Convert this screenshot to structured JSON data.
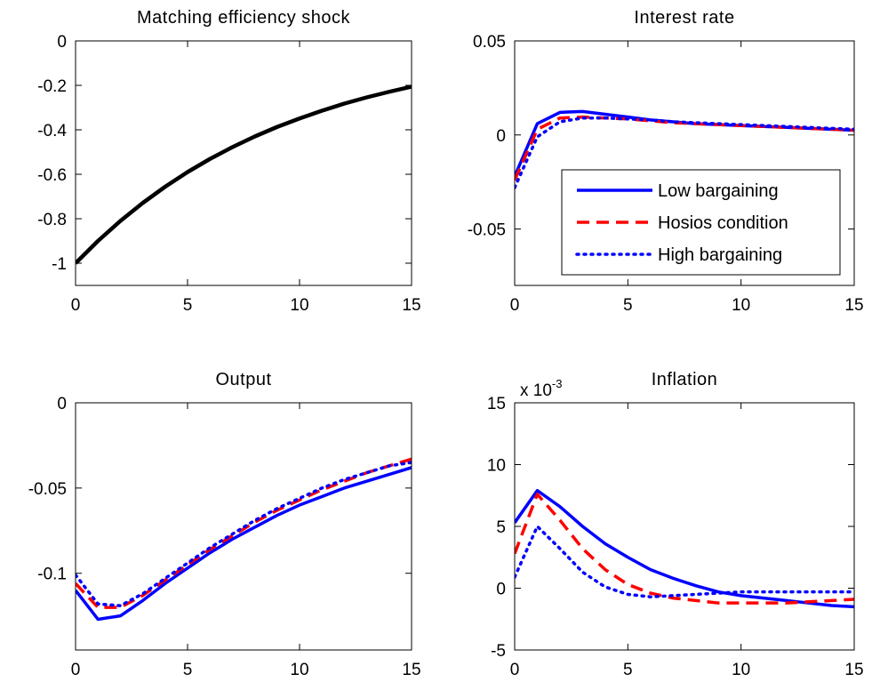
{
  "colors": {
    "black_line": "#000000",
    "low_bargaining": "#0000ff",
    "hosios": "#ff0000",
    "high_bargaining": "#0000ff"
  },
  "chart_data": [
    {
      "type": "line",
      "title": "Matching efficiency shock",
      "xlabel": "",
      "ylabel": "",
      "xlim": [
        0,
        15
      ],
      "ylim": [
        -1.1,
        0
      ],
      "xticks": [
        0,
        5,
        10,
        15
      ],
      "xtick_labels": [
        "0",
        "5",
        "10",
        "15"
      ],
      "yticks": [
        0,
        -0.2,
        -0.4,
        -0.6,
        -0.8,
        -1
      ],
      "ytick_labels": [
        "0",
        "-0.2",
        "-0.4",
        "-0.6",
        "-0.8",
        "-1"
      ],
      "grid": false,
      "x": [
        0,
        1,
        2,
        3,
        4,
        5,
        6,
        7,
        8,
        9,
        10,
        11,
        12,
        13,
        14,
        15
      ],
      "series": [
        {
          "style": "solid-black",
          "values": [
            -1.0,
            -0.9,
            -0.81,
            -0.729,
            -0.656,
            -0.59,
            -0.531,
            -0.478,
            -0.43,
            -0.387,
            -0.349,
            -0.314,
            -0.282,
            -0.254,
            -0.229,
            -0.206
          ]
        }
      ]
    },
    {
      "type": "line",
      "title": "Interest rate",
      "xlabel": "",
      "ylabel": "",
      "xlim": [
        0,
        15
      ],
      "ylim": [
        -0.08,
        0.05
      ],
      "xticks": [
        0,
        5,
        10,
        15
      ],
      "xtick_labels": [
        "0",
        "5",
        "10",
        "15"
      ],
      "yticks": [
        0.05,
        0,
        -0.05
      ],
      "ytick_labels": [
        "0.05",
        "0",
        "-0.05"
      ],
      "grid": false,
      "legend": {
        "placement": "right-middle",
        "entries": [
          "Low bargaining",
          "Hosios condition",
          "High bargaining"
        ]
      },
      "x": [
        0,
        1,
        2,
        3,
        4,
        5,
        6,
        7,
        8,
        9,
        10,
        11,
        12,
        13,
        14,
        15
      ],
      "series": [
        {
          "name": "Low bargaining",
          "style": "solid-blue",
          "values": [
            -0.022,
            0.006,
            0.012,
            0.0125,
            0.011,
            0.0095,
            0.008,
            0.007,
            0.006,
            0.0055,
            0.005,
            0.0045,
            0.004,
            0.0035,
            0.003,
            0.0025
          ]
        },
        {
          "name": "Hosios condition",
          "style": "dashed-red",
          "values": [
            -0.024,
            0.003,
            0.009,
            0.0095,
            0.009,
            0.0085,
            0.0075,
            0.0065,
            0.006,
            0.0055,
            0.005,
            0.0045,
            0.004,
            0.0035,
            0.003,
            0.0025
          ]
        },
        {
          "name": "High bargaining",
          "style": "dotted-blue",
          "values": [
            -0.028,
            -0.001,
            0.007,
            0.009,
            0.009,
            0.0085,
            0.008,
            0.007,
            0.0065,
            0.006,
            0.0055,
            0.005,
            0.0045,
            0.004,
            0.0035,
            0.003
          ]
        }
      ]
    },
    {
      "type": "line",
      "title": "Output",
      "xlabel": "",
      "ylabel": "",
      "xlim": [
        0,
        15
      ],
      "ylim": [
        -0.145,
        0
      ],
      "xticks": [
        0,
        5,
        10,
        15
      ],
      "xtick_labels": [
        "0",
        "5",
        "10",
        "15"
      ],
      "yticks": [
        0,
        -0.05,
        -0.1
      ],
      "ytick_labels": [
        "0",
        "-0.05",
        "-0.1"
      ],
      "grid": false,
      "x": [
        0,
        1,
        2,
        3,
        4,
        5,
        6,
        7,
        8,
        9,
        10,
        11,
        12,
        13,
        14,
        15
      ],
      "series": [
        {
          "name": "Low bargaining",
          "style": "solid-blue",
          "values": [
            -0.11,
            -0.127,
            -0.125,
            -0.116,
            -0.106,
            -0.097,
            -0.088,
            -0.08,
            -0.073,
            -0.066,
            -0.06,
            -0.055,
            -0.05,
            -0.046,
            -0.042,
            -0.038
          ]
        },
        {
          "name": "Hosios condition",
          "style": "dashed-red",
          "values": [
            -0.106,
            -0.12,
            -0.12,
            -0.113,
            -0.104,
            -0.095,
            -0.086,
            -0.078,
            -0.07,
            -0.063,
            -0.057,
            -0.051,
            -0.046,
            -0.041,
            -0.037,
            -0.033
          ]
        },
        {
          "name": "High bargaining",
          "style": "dotted-blue",
          "values": [
            -0.101,
            -0.118,
            -0.119,
            -0.112,
            -0.103,
            -0.094,
            -0.085,
            -0.077,
            -0.069,
            -0.062,
            -0.056,
            -0.05,
            -0.045,
            -0.041,
            -0.037,
            -0.035
          ]
        }
      ]
    },
    {
      "type": "line",
      "title": "Inflation",
      "exponent_base": "x 10",
      "exponent_power": "-3",
      "xlabel": "",
      "ylabel": "",
      "xlim": [
        0,
        15
      ],
      "ylim": [
        -5,
        15
      ],
      "xticks": [
        0,
        5,
        10,
        15
      ],
      "xtick_labels": [
        "0",
        "5",
        "10",
        "15"
      ],
      "yticks": [
        15,
        10,
        5,
        0,
        -5
      ],
      "ytick_labels": [
        "15",
        "10",
        "5",
        "0",
        "-5"
      ],
      "grid": false,
      "x": [
        0,
        1,
        2,
        3,
        4,
        5,
        6,
        7,
        8,
        9,
        10,
        11,
        12,
        13,
        14,
        15
      ],
      "series": [
        {
          "name": "Low bargaining",
          "style": "solid-blue",
          "values": [
            5.3,
            7.9,
            6.6,
            5.0,
            3.6,
            2.5,
            1.5,
            0.8,
            0.2,
            -0.3,
            -0.6,
            -0.8,
            -1.0,
            -1.2,
            -1.4,
            -1.5
          ]
        },
        {
          "name": "Hosios condition",
          "style": "dashed-red",
          "values": [
            2.8,
            7.6,
            5.5,
            3.2,
            1.5,
            0.3,
            -0.4,
            -0.8,
            -1.0,
            -1.2,
            -1.2,
            -1.2,
            -1.2,
            -1.1,
            -1.0,
            -0.9
          ]
        },
        {
          "name": "High bargaining",
          "style": "dotted-blue",
          "values": [
            0.9,
            5.0,
            3.2,
            1.3,
            0.1,
            -0.5,
            -0.7,
            -0.6,
            -0.5,
            -0.4,
            -0.3,
            -0.3,
            -0.3,
            -0.3,
            -0.3,
            -0.3
          ]
        }
      ]
    }
  ]
}
